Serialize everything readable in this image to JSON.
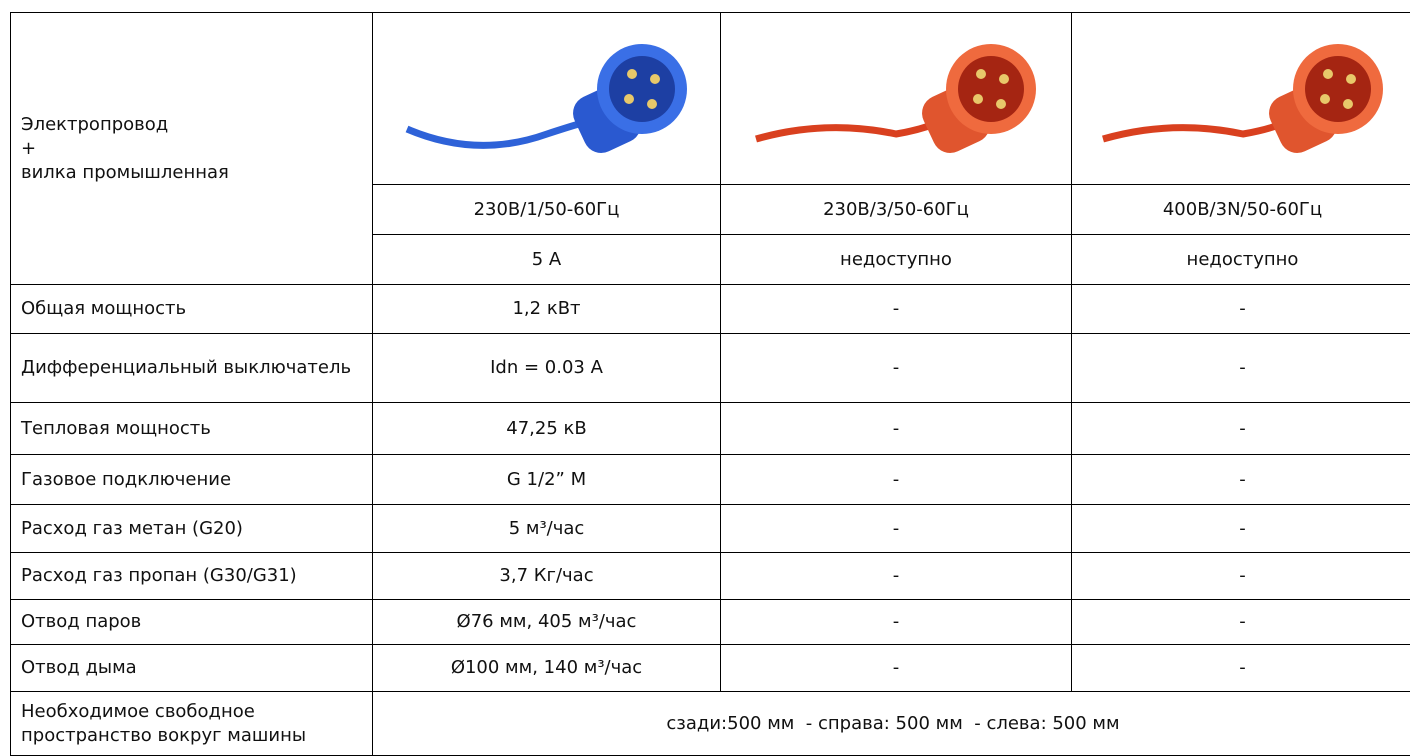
{
  "table": {
    "header_label": [
      "Электропровод",
      "+",
      "вилка промышленная"
    ],
    "voltages": [
      "230В/1/50-60Гц",
      "230В/3/50-60Гц",
      "400В/3N/50-60Гц"
    ],
    "currents": [
      "5 А",
      "недоступно",
      "недоступно"
    ],
    "rows": [
      [
        "Общая мощность",
        "1,2 кВт",
        "-",
        "-"
      ],
      [
        "Дифференциальный выключатель",
        "Idn = 0.03 A",
        "-",
        "-"
      ],
      [
        "Тепловая мощность",
        "47,25 кВ",
        "-",
        "-"
      ],
      [
        "Газовое подключение",
        "G 1/2” M",
        "-",
        "-"
      ],
      [
        "Расход газ метан (G20)",
        "5 м³/час",
        "-",
        "-"
      ],
      [
        "Расход газ пропан (G30/G31)",
        "3,7 Кг/час",
        "-",
        "-"
      ],
      [
        "Отвод паров",
        "Ø76 мм, 405 м³/час",
        "-",
        "-"
      ],
      [
        "Отвод дыма",
        "Ø100 мм, 140 м³/час",
        "-",
        "-"
      ]
    ],
    "footer": [
      "Необходимое свободное пространство вокруг машины",
      "сзади:500 мм  - справа: 500 мм  - слева: 500 мм"
    ]
  }
}
